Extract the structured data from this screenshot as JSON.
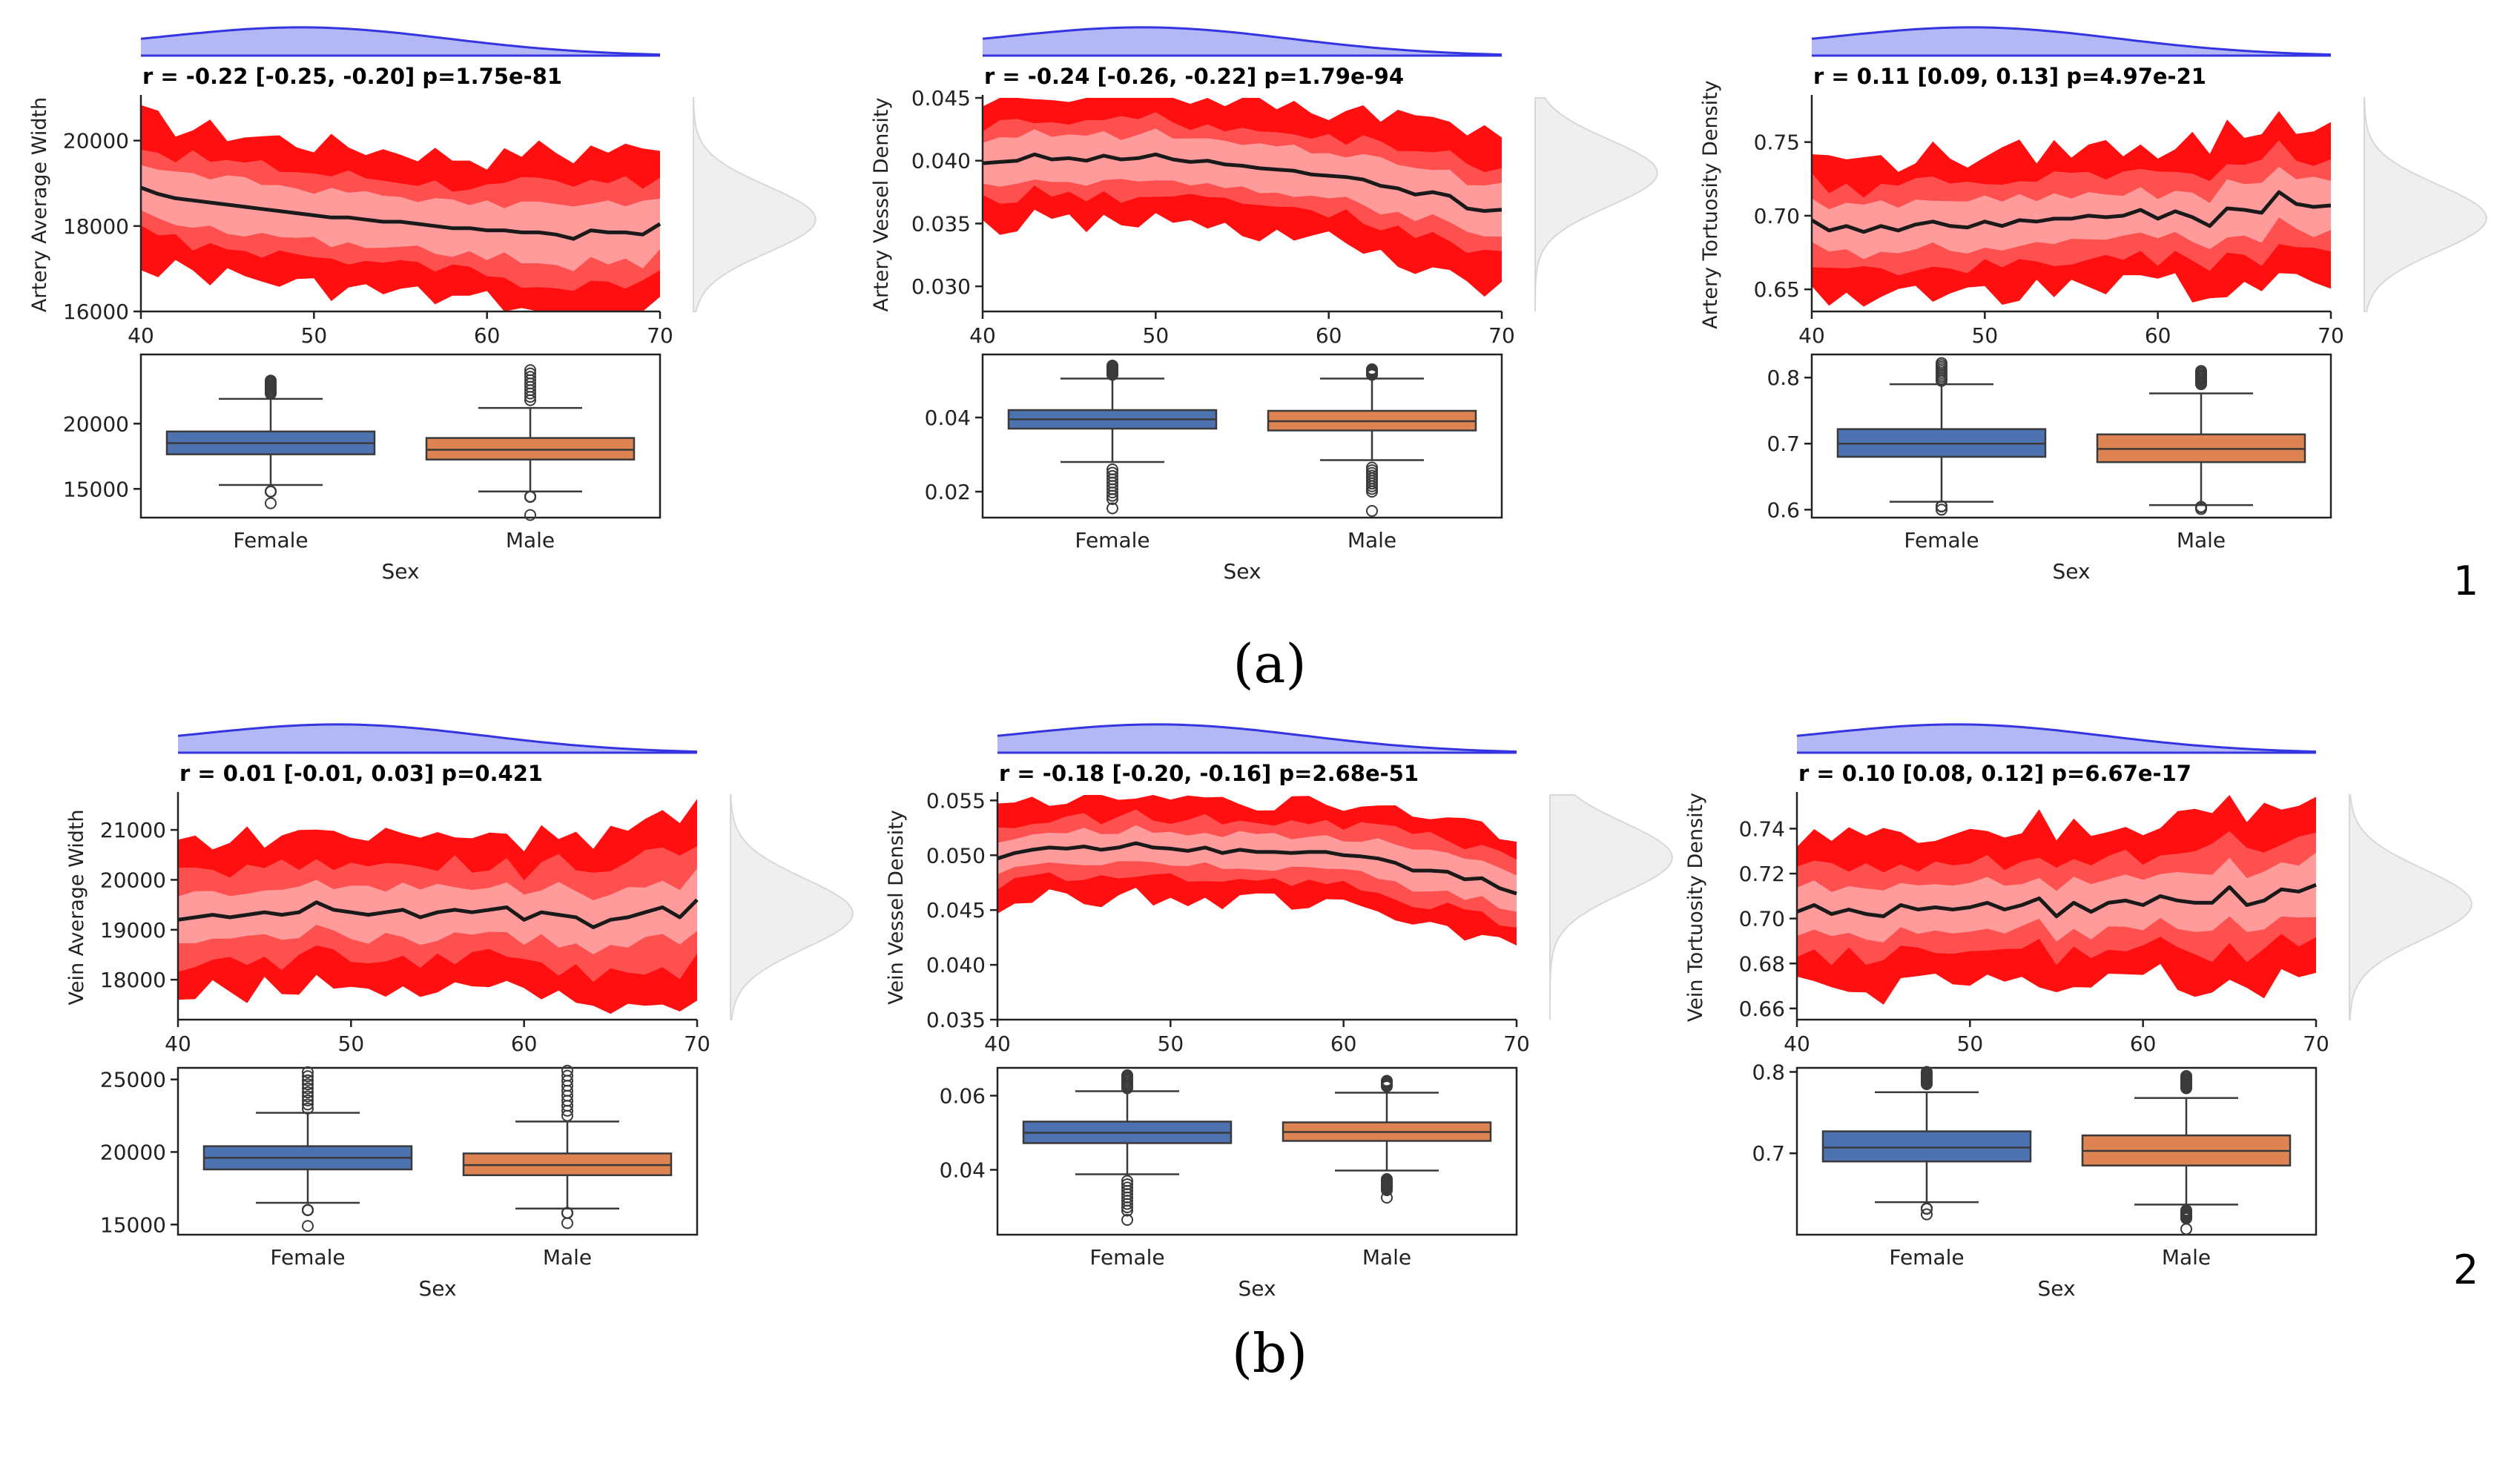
{
  "subfigure_labels": [
    "(a)",
    "(b)"
  ],
  "row_numbers": [
    "1",
    "2"
  ],
  "colors": {
    "band_outer": "#ff9b9b",
    "band_mid": "#ff5050",
    "band_inner": "#ff0f0f",
    "median_line": "#1a1a1a",
    "density_top": "#9aa0f0",
    "density_top_line": "#3434e0",
    "density_side": "#efefef",
    "female_box": "#4c72b0",
    "male_box": "#dd8452"
  },
  "chart_data": [
    {
      "type": "area",
      "row": 0,
      "col": 0,
      "title": "r = -0.22 [-0.25, -0.20] p=1.75e-81",
      "ylabel": "Artery Average Width",
      "xlim": [
        40,
        70
      ],
      "ylim": [
        16000,
        21000
      ],
      "x_ticks": [
        "40",
        "50",
        "60",
        "70"
      ],
      "x_tick_values": [
        40,
        50,
        60,
        70
      ],
      "y_ticks": [
        "16000",
        "18000",
        "20000"
      ],
      "y_tick_values": [
        16000,
        18000,
        20000
      ],
      "median": [
        18900,
        18750,
        18650,
        18600,
        18550,
        18500,
        18450,
        18400,
        18350,
        18300,
        18250,
        18200,
        18200,
        18150,
        18100,
        18100,
        18050,
        18000,
        17950,
        17950,
        17900,
        17900,
        17850,
        17850,
        17800,
        17700,
        17900,
        17850,
        17850,
        17800,
        18050
      ],
      "band_half_widths": [
        600,
        1000,
        1700
      ],
      "boxplot": {
        "xlabel": "Sex",
        "categories": [
          "Female",
          "Male"
        ],
        "y_ticks": [
          "15000",
          "20000"
        ],
        "y_tick_values": [
          15000,
          20000
        ],
        "ylim": [
          12800,
          25300
        ],
        "boxes": [
          {
            "q1": 17650,
            "median": 18500,
            "q3": 19400,
            "whisker_low": 15300,
            "whisker_high": 21900,
            "outliers_low": [
              13900,
              14800
            ],
            "outliers_high": [
              22300,
              23300
            ]
          },
          {
            "q1": 17250,
            "median": 18000,
            "q3": 18900,
            "whisker_low": 14800,
            "whisker_high": 21200,
            "outliers_low": [
              13000,
              14400
            ],
            "outliers_high": [
              21800,
              24100
            ]
          }
        ]
      }
    },
    {
      "type": "area",
      "row": 0,
      "col": 1,
      "title": "r = -0.24 [-0.26, -0.22] p=1.79e-94",
      "ylabel": "Artery Vessel Density",
      "xlim": [
        40,
        70
      ],
      "ylim": [
        0.028,
        0.045
      ],
      "x_ticks": [
        "40",
        "50",
        "60",
        "70"
      ],
      "x_tick_values": [
        40,
        50,
        60,
        70
      ],
      "y_ticks": [
        "0.030",
        "0.035",
        "0.040",
        "0.045"
      ],
      "y_tick_values": [
        0.03,
        0.035,
        0.04,
        0.045
      ],
      "median": [
        0.0398,
        0.0399,
        0.04,
        0.0405,
        0.0401,
        0.0402,
        0.04,
        0.0404,
        0.0401,
        0.0402,
        0.0405,
        0.0401,
        0.0399,
        0.04,
        0.0397,
        0.0396,
        0.0394,
        0.0393,
        0.0392,
        0.0389,
        0.0388,
        0.0387,
        0.0385,
        0.038,
        0.0378,
        0.0373,
        0.0375,
        0.0372,
        0.0362,
        0.036,
        0.0361
      ],
      "band_half_widths": [
        0.0018,
        0.003,
        0.0052
      ],
      "boxplot": {
        "xlabel": "Sex",
        "categories": [
          "Female",
          "Male"
        ],
        "y_ticks": [
          "0.02",
          "0.04"
        ],
        "y_tick_values": [
          0.02,
          0.04
        ],
        "ylim": [
          0.013,
          0.057
        ],
        "boxes": [
          {
            "q1": 0.037,
            "median": 0.0395,
            "q3": 0.042,
            "whisker_low": 0.028,
            "whisker_high": 0.0505,
            "outliers_low": [
              0.0155,
              0.018,
              0.023,
              0.026
            ],
            "outliers_high": [
              0.0515,
              0.054
            ]
          },
          {
            "q1": 0.0365,
            "median": 0.039,
            "q3": 0.0418,
            "whisker_low": 0.0285,
            "whisker_high": 0.0505,
            "outliers_low": [
              0.0148,
              0.02,
              0.0235,
              0.0265
            ],
            "outliers_high": [
              0.0515,
              0.053
            ]
          }
        ]
      }
    },
    {
      "type": "area",
      "row": 0,
      "col": 2,
      "title": "r = 0.11 [0.09, 0.13] p=4.97e-21",
      "ylabel": "Artery Tortuosity Density",
      "xlim": [
        40,
        70
      ],
      "ylim": [
        0.635,
        0.78
      ],
      "x_ticks": [
        "40",
        "50",
        "60",
        "70"
      ],
      "x_tick_values": [
        40,
        50,
        60,
        70
      ],
      "y_ticks": [
        "0.65",
        "0.70",
        "0.75"
      ],
      "y_tick_values": [
        0.65,
        0.7,
        0.75
      ],
      "median": [
        0.697,
        0.69,
        0.693,
        0.689,
        0.693,
        0.69,
        0.694,
        0.696,
        0.693,
        0.692,
        0.696,
        0.693,
        0.697,
        0.696,
        0.698,
        0.698,
        0.7,
        0.699,
        0.7,
        0.704,
        0.698,
        0.703,
        0.699,
        0.693,
        0.705,
        0.704,
        0.702,
        0.716,
        0.708,
        0.706,
        0.707
      ],
      "band_half_widths": [
        0.016,
        0.028,
        0.047
      ],
      "boxplot": {
        "xlabel": "Sex",
        "categories": [
          "Female",
          "Male"
        ],
        "y_ticks": [
          "0.6",
          "0.7",
          "0.8"
        ],
        "y_tick_values": [
          0.6,
          0.7,
          0.8
        ],
        "ylim": [
          0.588,
          0.835
        ],
        "boxes": [
          {
            "q1": 0.68,
            "median": 0.7,
            "q3": 0.722,
            "whisker_low": 0.612,
            "whisker_high": 0.79,
            "outliers_low": [
              0.6,
              0.605
            ],
            "outliers_high": [
              0.795,
              0.822
            ]
          },
          {
            "q1": 0.672,
            "median": 0.692,
            "q3": 0.714,
            "whisker_low": 0.607,
            "whisker_high": 0.776,
            "outliers_low": [
              0.601,
              0.604
            ],
            "outliers_high": [
              0.79,
              0.81
            ]
          }
        ]
      }
    },
    {
      "type": "area",
      "row": 1,
      "col": 0,
      "title": "r = 0.01 [-0.01, 0.03] p=0.421",
      "ylabel": "Vein Average Width",
      "xlim": [
        40,
        70
      ],
      "ylim": [
        17200,
        21700
      ],
      "x_ticks": [
        "40",
        "50",
        "60",
        "70"
      ],
      "x_tick_values": [
        40,
        50,
        60,
        70
      ],
      "y_ticks": [
        "18000",
        "19000",
        "20000",
        "21000"
      ],
      "y_tick_values": [
        18000,
        19000,
        20000,
        21000
      ],
      "median": [
        19200,
        19250,
        19300,
        19250,
        19300,
        19350,
        19300,
        19350,
        19550,
        19400,
        19350,
        19300,
        19350,
        19400,
        19250,
        19350,
        19400,
        19350,
        19400,
        19450,
        19200,
        19350,
        19300,
        19250,
        19050,
        19200,
        19250,
        19350,
        19450,
        19250,
        19600
      ],
      "band_half_widths": [
        500,
        950,
        1550
      ],
      "boxplot": {
        "xlabel": "Sex",
        "categories": [
          "Female",
          "Male"
        ],
        "y_ticks": [
          "15000",
          "20000",
          "25000"
        ],
        "y_tick_values": [
          15000,
          20000,
          25000
        ],
        "ylim": [
          14300,
          25800
        ],
        "boxes": [
          {
            "q1": 18800,
            "median": 19600,
            "q3": 20400,
            "whisker_low": 16500,
            "whisker_high": 22700,
            "outliers_low": [
              14900,
              16000
            ],
            "outliers_high": [
              23000,
              25500
            ]
          },
          {
            "q1": 18400,
            "median": 19100,
            "q3": 19900,
            "whisker_low": 16100,
            "whisker_high": 22100,
            "outliers_low": [
              15100,
              15800
            ],
            "outliers_high": [
              22500,
              25600
            ]
          }
        ]
      }
    },
    {
      "type": "area",
      "row": 1,
      "col": 1,
      "title": "r = -0.18 [-0.20, -0.16] p=2.68e-51",
      "ylabel": "Vein Vessel Density",
      "xlim": [
        40,
        70
      ],
      "ylim": [
        0.035,
        0.0555
      ],
      "x_ticks": [
        "40",
        "50",
        "60",
        "70"
      ],
      "x_tick_values": [
        40,
        50,
        60,
        70
      ],
      "y_ticks": [
        "0.035",
        "0.040",
        "0.045",
        "0.050",
        "0.055"
      ],
      "y_tick_values": [
        0.035,
        0.04,
        0.045,
        0.05,
        0.055
      ],
      "median": [
        0.0497,
        0.0502,
        0.0505,
        0.0507,
        0.0506,
        0.0508,
        0.0505,
        0.0507,
        0.0511,
        0.0507,
        0.0506,
        0.0504,
        0.0507,
        0.0502,
        0.0505,
        0.0503,
        0.0503,
        0.0502,
        0.0503,
        0.0503,
        0.05,
        0.0499,
        0.0497,
        0.0493,
        0.0486,
        0.0486,
        0.0485,
        0.0478,
        0.0479,
        0.047,
        0.0465
      ],
      "band_half_widths": [
        0.0015,
        0.0027,
        0.0045
      ],
      "boxplot": {
        "xlabel": "Sex",
        "categories": [
          "Female",
          "Male"
        ],
        "y_ticks": [
          "0.04",
          "0.06"
        ],
        "y_tick_values": [
          0.04,
          0.06
        ],
        "ylim": [
          0.0225,
          0.0675
        ],
        "boxes": [
          {
            "q1": 0.0472,
            "median": 0.05,
            "q3": 0.053,
            "whisker_low": 0.0388,
            "whisker_high": 0.0612,
            "outliers_low": [
              0.0265,
              0.029,
              0.032,
              0.037
            ],
            "outliers_high": [
              0.062,
              0.0655
            ]
          },
          {
            "q1": 0.0478,
            "median": 0.0502,
            "q3": 0.0528,
            "whisker_low": 0.0398,
            "whisker_high": 0.0608,
            "outliers_low": [
              0.0325,
              0.0345,
              0.0375
            ],
            "outliers_high": [
              0.0625,
              0.064
            ]
          }
        ]
      }
    },
    {
      "type": "area",
      "row": 1,
      "col": 2,
      "title": "r = 0.10 [0.08, 0.12] p=6.67e-17",
      "ylabel": "Vein Tortuosity Density",
      "xlim": [
        40,
        70
      ],
      "ylim": [
        0.655,
        0.755
      ],
      "x_ticks": [
        "40",
        "50",
        "60",
        "70"
      ],
      "x_tick_values": [
        40,
        50,
        60,
        70
      ],
      "y_ticks": [
        "0.66",
        "0.68",
        "0.70",
        "0.72",
        "0.74"
      ],
      "y_tick_values": [
        0.66,
        0.68,
        0.7,
        0.72,
        0.74
      ],
      "median": [
        0.703,
        0.706,
        0.702,
        0.704,
        0.702,
        0.701,
        0.706,
        0.704,
        0.705,
        0.704,
        0.705,
        0.707,
        0.704,
        0.706,
        0.709,
        0.701,
        0.707,
        0.703,
        0.707,
        0.708,
        0.706,
        0.71,
        0.708,
        0.707,
        0.707,
        0.714,
        0.706,
        0.708,
        0.713,
        0.712,
        0.715
      ],
      "band_half_widths": [
        0.011,
        0.02,
        0.034
      ],
      "boxplot": {
        "xlabel": "Sex",
        "categories": [
          "Female",
          "Male"
        ],
        "y_ticks": [
          "0.7",
          "0.8"
        ],
        "y_tick_values": [
          0.7,
          0.8
        ],
        "ylim": [
          0.6,
          0.805
        ],
        "boxes": [
          {
            "q1": 0.69,
            "median": 0.707,
            "q3": 0.727,
            "whisker_low": 0.64,
            "whisker_high": 0.775,
            "outliers_low": [
              0.625,
              0.632
            ],
            "outliers_high": [
              0.785,
              0.8
            ]
          },
          {
            "q1": 0.685,
            "median": 0.703,
            "q3": 0.722,
            "whisker_low": 0.637,
            "whisker_high": 0.768,
            "outliers_low": [
              0.607,
              0.62,
              0.63
            ],
            "outliers_high": [
              0.78,
              0.795
            ]
          }
        ]
      }
    }
  ]
}
